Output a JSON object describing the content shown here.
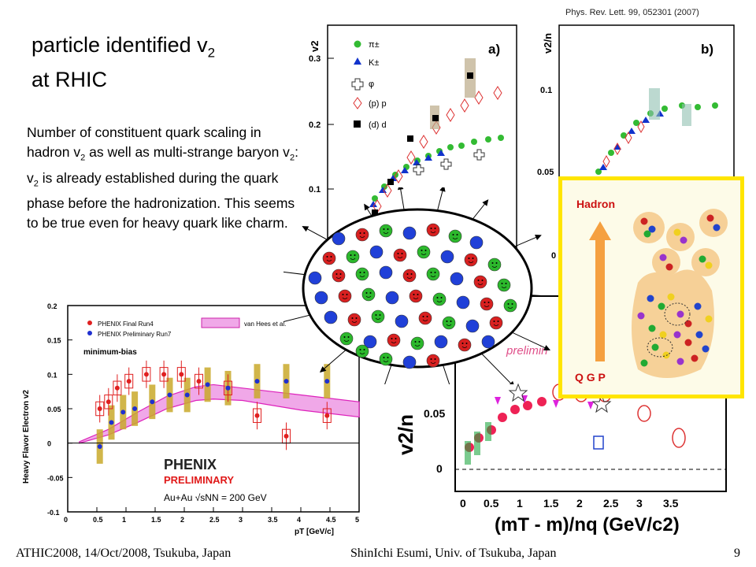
{
  "slide": {
    "title_main": "particle identified v",
    "title_sub": "2",
    "title_line2": "at RHIC",
    "body_parts": [
      "Number of constituent quark scaling in hadron v",
      "2",
      " as well as multi-strange baryon v",
      "2",
      ": v",
      "2",
      " is already established during the quark phase before the hadronization. This seems to be true even for heavy quark like charm."
    ],
    "citation": "Phys. Rev. Lett. 99, 052301 (2007)",
    "footer_left": "ATHIC2008, 14/Oct/2008, Tsukuba, Japan",
    "footer_center": "ShinIchi Esumi, Univ. of Tsukuba, Japan",
    "page_number": "9"
  },
  "panel_a": {
    "ylabel": "v2",
    "panel_label": "a)",
    "yticks": [
      "0.3",
      "0.2",
      "0.1"
    ],
    "legend": [
      "π±",
      "K±",
      "φ",
      "(p) p",
      "(d) d"
    ],
    "colors": {
      "pion": "#33bb33",
      "kaon": "#1133cc",
      "proton": "#dd3333",
      "deuteron": "#000000"
    }
  },
  "panel_b": {
    "ylabel": "v2/n",
    "panel_label": "b)",
    "yticks": [
      "0.1",
      "0.05",
      "0"
    ]
  },
  "inset_diagram": {
    "top_label": "Hadron",
    "bottom_label": "Q G P",
    "border_color": "#ffe500",
    "arrow_color": "#f5a040"
  },
  "bottom_right_plot": {
    "ylabel": "v2/n",
    "yticks": [
      "0.05",
      "0"
    ],
    "xticks": [
      "0",
      "0.5",
      "1",
      "1.5",
      "2",
      "2.5",
      "3",
      "3.5"
    ],
    "xlabel": "(mT - m)/nq  (GeV/c2)",
    "partial_text": "prelimin",
    "partial_left": "0"
  },
  "chart_data": [
    {
      "type": "scatter",
      "title": "",
      "xlabel": "pT [GeV/c]",
      "ylabel": "Heavy Flavor Electron v2",
      "xlim": [
        0,
        5
      ],
      "ylim": [
        -0.1,
        0.2
      ],
      "xticks": [
        "0",
        "0.5",
        "1",
        "1.5",
        "2",
        "2.5",
        "3",
        "3.5",
        "4",
        "4.5",
        "5"
      ],
      "yticks": [
        "0.2",
        "0.15",
        "0.1",
        "0.05",
        "0",
        "-0.05",
        "-0.1"
      ],
      "legend": [
        "PHENIX Final Run4",
        "PHENIX Preliminary Run7",
        "van Hees et al."
      ],
      "annotations": [
        "minimum-bias",
        "PHENIX",
        "PRELIMINARY",
        "Au+Au √sNN = 200 GeV"
      ],
      "series": [
        {
          "name": "PHENIX Final Run4",
          "color": "#e02020",
          "x": [
            0.55,
            0.7,
            0.85,
            1.05,
            1.35,
            1.65,
            1.95,
            2.25,
            2.75,
            3.25,
            3.75,
            4.45
          ],
          "y": [
            0.05,
            0.06,
            0.08,
            0.09,
            0.1,
            0.1,
            0.1,
            0.09,
            0.08,
            0.04,
            0.01,
            0.04
          ]
        },
        {
          "name": "PHENIX Preliminary Run7",
          "color": "#2030d0",
          "x": [
            0.55,
            0.75,
            0.95,
            1.15,
            1.45,
            1.75,
            2.05,
            2.4,
            2.75,
            3.25,
            3.75,
            4.45
          ],
          "y": [
            -0.005,
            0.03,
            0.045,
            0.05,
            0.06,
            0.07,
            0.07,
            0.085,
            0.08,
            0.09,
            0.09,
            0.09
          ]
        },
        {
          "name": "van Hees et al.",
          "color": "#dd22bb",
          "band_x": [
            0.2,
            0.7,
            1.2,
            1.7,
            2.2,
            2.5,
            3.0,
            3.5,
            4.0,
            4.5,
            5.0
          ],
          "band_lo": [
            0.0,
            0.012,
            0.03,
            0.05,
            0.062,
            0.064,
            0.062,
            0.055,
            0.048,
            0.043,
            0.038
          ],
          "band_hi": [
            0.002,
            0.02,
            0.045,
            0.068,
            0.082,
            0.085,
            0.08,
            0.075,
            0.07,
            0.065,
            0.06
          ]
        }
      ]
    }
  ]
}
